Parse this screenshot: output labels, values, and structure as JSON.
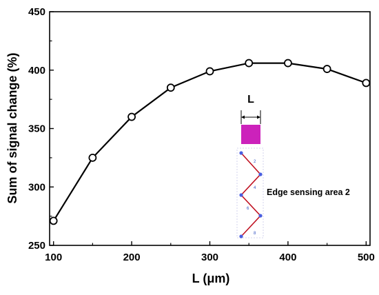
{
  "chart_data": {
    "type": "line",
    "title": "",
    "xlabel": "L (μm)",
    "ylabel": "Sum of signal change (%)",
    "xlim": [
      95,
      505
    ],
    "ylim": [
      250,
      450
    ],
    "xticks": [
      100,
      200,
      300,
      400,
      500
    ],
    "xticks_minor": [
      150,
      250,
      350,
      450
    ],
    "yticks": [
      250,
      300,
      350,
      400,
      450
    ],
    "yticks_minor": [
      275,
      325,
      375,
      425
    ],
    "grid": false,
    "legend": "none",
    "series": [
      {
        "x": [
          100,
          150,
          200,
          250,
          300,
          350,
          400,
          450,
          500
        ],
        "values": [
          271,
          325,
          360,
          385,
          399,
          406,
          406,
          401,
          389
        ],
        "marker": "open-circle",
        "color": "#000000"
      }
    ]
  },
  "inset": {
    "dimension_label": "L",
    "area_label": "Edge sensing area 2",
    "numbers": [
      "2",
      "4",
      "6",
      "8"
    ],
    "pad_color": "#cc22bb",
    "line_color": "#c01020"
  }
}
